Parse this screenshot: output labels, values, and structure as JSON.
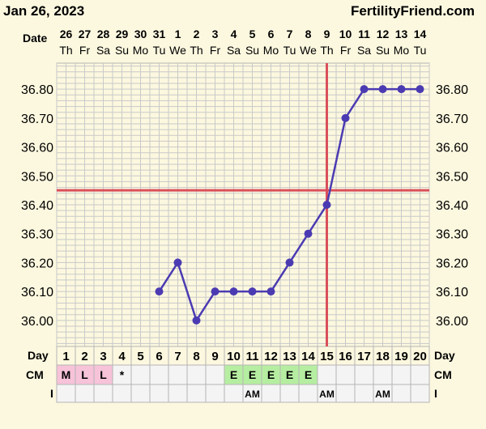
{
  "header": {
    "date": "Jan 26, 2023",
    "brand": "FertilityFriend.com"
  },
  "labels": {
    "date_row": "Date",
    "day_row": "Day",
    "cm_row": "CM",
    "i_row": "I"
  },
  "colors": {
    "background": "#fcf8df",
    "grid": "#c9c9c9",
    "line": "#4b3bb2",
    "point": "#4b3bb2",
    "coverline": "#d9505a",
    "cm_menses": "#f7c3d9",
    "cm_eggwhite": "#b6eea1",
    "text": "#000000"
  },
  "chart_data": {
    "type": "line",
    "title": "",
    "xlabel": "Day",
    "ylabel": "",
    "ylim": [
      35.91,
      36.89
    ],
    "yticks": [
      "36.00",
      "36.10",
      "36.20",
      "36.30",
      "36.40",
      "36.50",
      "36.60",
      "36.70",
      "36.80"
    ],
    "dates": [
      "26",
      "27",
      "28",
      "29",
      "30",
      "31",
      "1",
      "2",
      "3",
      "4",
      "5",
      "6",
      "7",
      "8",
      "9",
      "10",
      "11",
      "12",
      "13",
      "14"
    ],
    "weekdays": [
      "Th",
      "Fr",
      "Sa",
      "Su",
      "Mo",
      "Tu",
      "We",
      "Th",
      "Fr",
      "Sa",
      "Su",
      "Mo",
      "Tu",
      "We",
      "Th",
      "Fr",
      "Sa",
      "Su",
      "Mo",
      "Tu"
    ],
    "cycle_days": [
      "1",
      "2",
      "3",
      "4",
      "5",
      "6",
      "7",
      "8",
      "9",
      "10",
      "11",
      "12",
      "13",
      "14",
      "15",
      "16",
      "17",
      "18",
      "19",
      "20"
    ],
    "series": [
      {
        "x": [
          6,
          7,
          8,
          9,
          10,
          11,
          12,
          13,
          14,
          15,
          16,
          17,
          18,
          19,
          20
        ],
        "values": [
          36.1,
          36.2,
          36.0,
          36.1,
          36.1,
          36.1,
          36.1,
          36.2,
          36.3,
          36.4,
          36.7,
          36.8,
          36.8,
          36.8,
          36.8
        ]
      }
    ],
    "coverline": 36.45,
    "ovulation_day": 15,
    "cm": [
      "M",
      "L",
      "L",
      "*",
      "",
      "",
      "",
      "",
      "",
      "E",
      "E",
      "E",
      "E",
      "E",
      "",
      "",
      "",
      "",
      "",
      ""
    ],
    "intercourse": [
      "",
      "",
      "",
      "",
      "",
      "",
      "",
      "",
      "",
      "",
      "AM",
      "",
      "",
      "",
      "AM",
      "",
      "",
      "AM",
      "",
      ""
    ],
    "grid": true
  }
}
